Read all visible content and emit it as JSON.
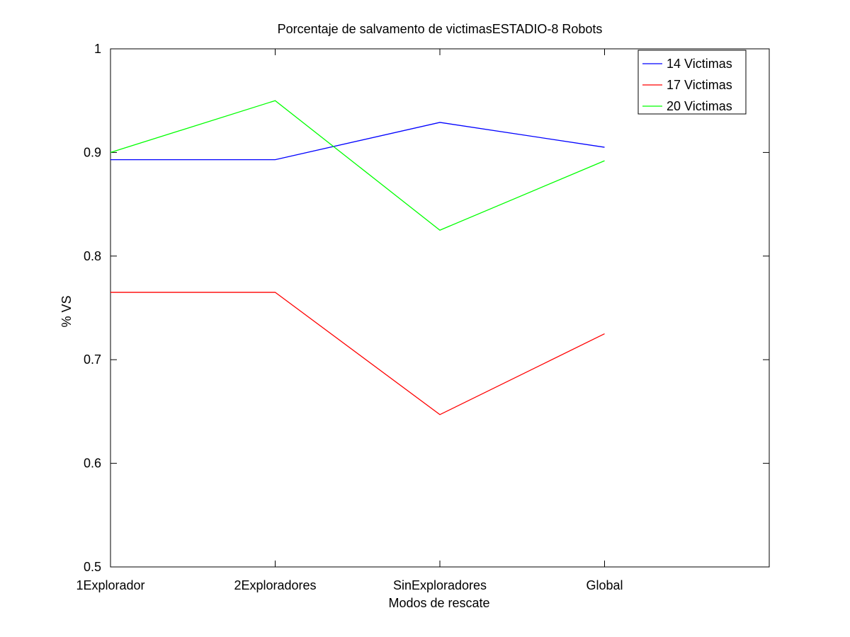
{
  "chart_data": {
    "type": "line",
    "title": "Porcentaje de salvamento de victimasESTADIO-8 Robots",
    "xlabel": "Modos de rescate",
    "ylabel": "% VS",
    "categories": [
      "1Explorador",
      "2Exploradores",
      "SinExploradores",
      "Global"
    ],
    "xlim": [
      1,
      5
    ],
    "ylim": [
      0.5,
      1.0
    ],
    "yticks": [
      0.5,
      0.6,
      0.7,
      0.8,
      0.9,
      1.0
    ],
    "ytick_labels": [
      "0.5",
      "0.6",
      "0.7",
      "0.8",
      "0.9",
      "1"
    ],
    "grid": false,
    "legend_position": "top-right",
    "series": [
      {
        "name": "14 Victimas",
        "color": "#0000ff",
        "values": [
          0.893,
          0.893,
          0.929,
          0.905
        ]
      },
      {
        "name": "17 Victimas",
        "color": "#ff0000",
        "values": [
          0.765,
          0.765,
          0.647,
          0.725
        ]
      },
      {
        "name": "20 Victimas",
        "color": "#00ff00",
        "values": [
          0.9,
          0.95,
          0.825,
          0.892
        ]
      }
    ]
  }
}
